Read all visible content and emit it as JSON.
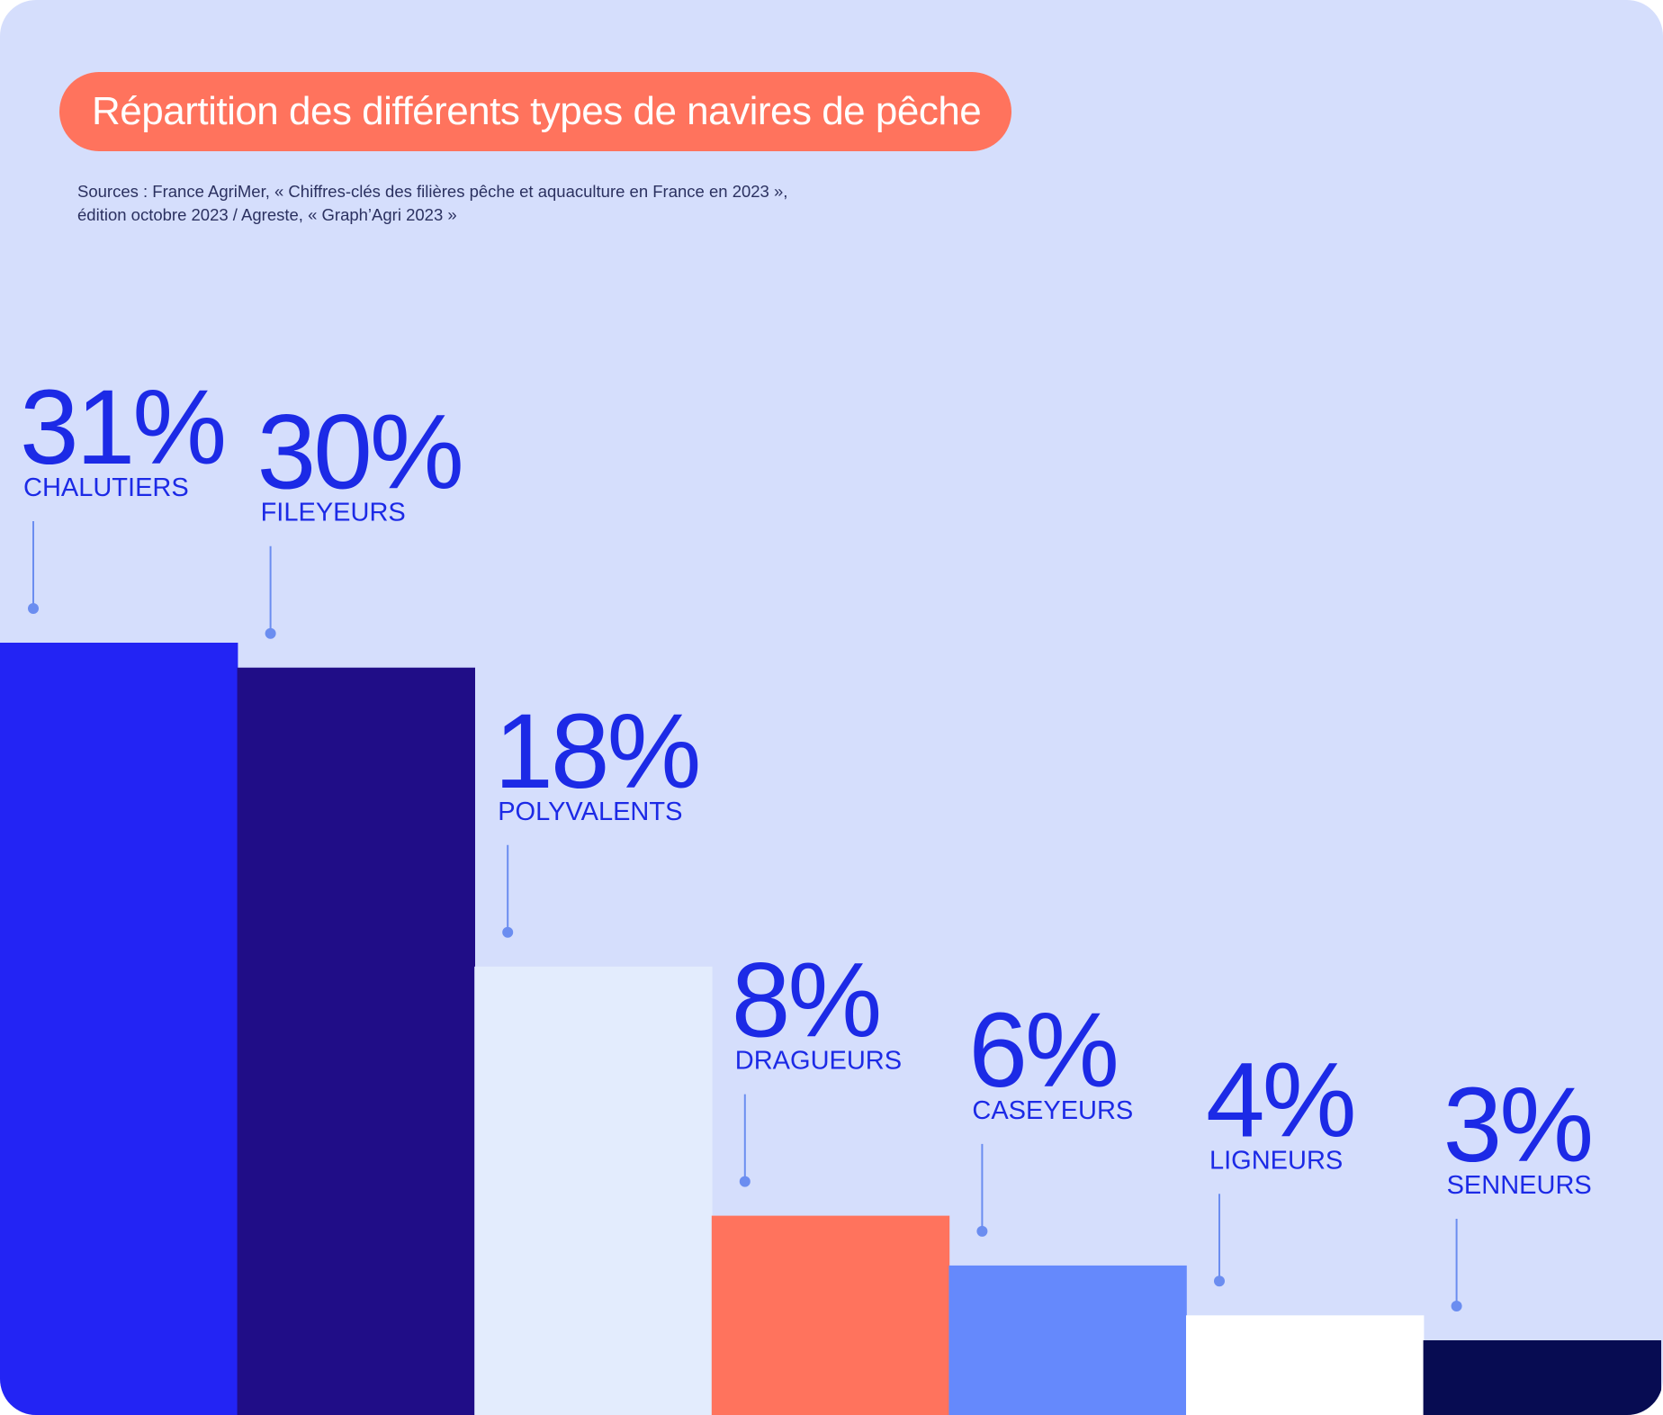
{
  "title": "Répartition des différents types de navires de pêche",
  "sources": [
    "Sources :  France AgriMer,  « Chiffres-clés des filières pêche et aquaculture en France en 2023 »,",
    "édition octobre 2023 / Agreste, « Graph’Agri 2023 »"
  ],
  "colors": {
    "background": "#d5defc",
    "title_pill": "#ff735d",
    "text_blue": "#1c2ae6",
    "leader": "#6b8df0"
  },
  "chart_data": {
    "type": "bar",
    "title": "Répartition des différents types de navires de pêche",
    "xlabel": "",
    "ylabel": "",
    "unit": "%",
    "ylim": [
      0,
      31
    ],
    "grid": false,
    "categories": [
      "CHALUTIERS",
      "FILEYEURS",
      "POLYVALENTS",
      "DRAGUEURS",
      "CASEYEURS",
      "LIGNEURS",
      "SENNEURS"
    ],
    "values": [
      31,
      30,
      18,
      8,
      6,
      4,
      3
    ],
    "labels": [
      "31%",
      "30%",
      "18%",
      "8%",
      "6%",
      "4%",
      "3%"
    ],
    "bar_colors": [
      "#2324f4",
      "#200d87",
      "#e3ecfd",
      "#ff735d",
      "#6589fc",
      "#ffffff",
      "#070c52"
    ]
  }
}
